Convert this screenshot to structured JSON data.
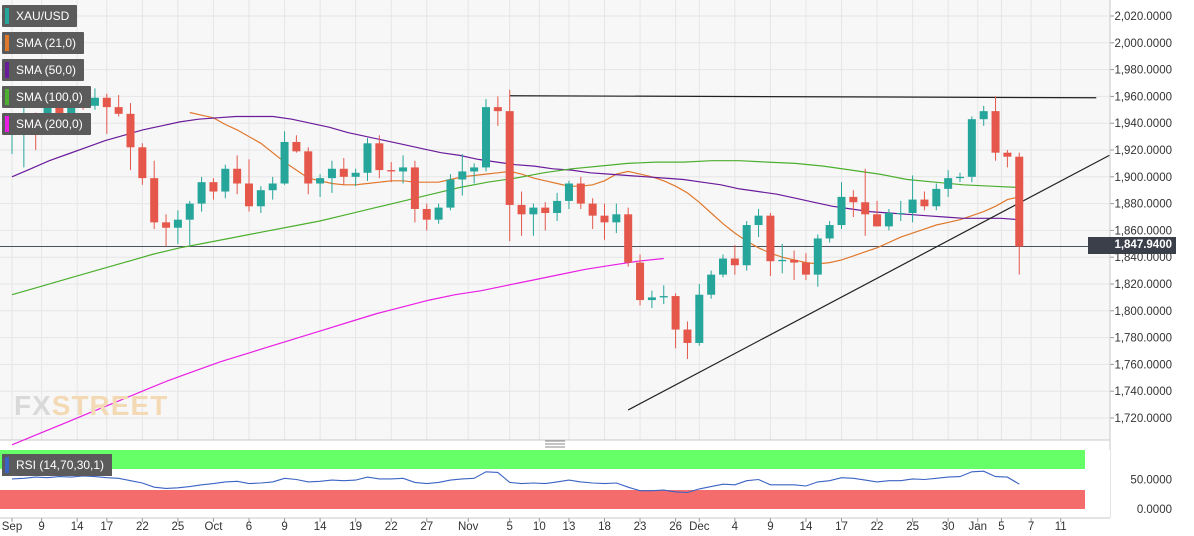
{
  "chart_data": {
    "type": "candlestick",
    "symbol": "XAU/USD",
    "last_price_label": "1,847.9400",
    "y_ticks": [
      "2,020.0000",
      "2,000.0000",
      "1,980.0000",
      "1,960.0000",
      "1,940.0000",
      "1,920.0000",
      "1,900.0000",
      "1,880.0000",
      "1,860.0000",
      "1,840.0000",
      "1,820.0000",
      "1,800.0000",
      "1,780.0000",
      "1,760.0000",
      "1,740.0000",
      "1,720.0000"
    ],
    "ylim": [
      1704,
      2026
    ],
    "x_tick_labels": [
      {
        "label": "Sep",
        "i": 0
      },
      {
        "label": "9",
        "i": 2.5
      },
      {
        "label": "14",
        "i": 5.5
      },
      {
        "label": "17",
        "i": 8
      },
      {
        "label": "22",
        "i": 11
      },
      {
        "label": "25",
        "i": 14
      },
      {
        "label": "Oct",
        "i": 17
      },
      {
        "label": "6",
        "i": 20
      },
      {
        "label": "9",
        "i": 23
      },
      {
        "label": "14",
        "i": 26
      },
      {
        "label": "19",
        "i": 29
      },
      {
        "label": "22",
        "i": 32
      },
      {
        "label": "27",
        "i": 35
      },
      {
        "label": "Nov",
        "i": 38.5
      },
      {
        "label": "5",
        "i": 42
      },
      {
        "label": "10",
        "i": 44.5
      },
      {
        "label": "13",
        "i": 47
      },
      {
        "label": "18",
        "i": 50
      },
      {
        "label": "23",
        "i": 53
      },
      {
        "label": "26",
        "i": 56
      },
      {
        "label": "Dec",
        "i": 58
      },
      {
        "label": "4",
        "i": 61
      },
      {
        "label": "9",
        "i": 64
      },
      {
        "label": "14",
        "i": 67
      },
      {
        "label": "17",
        "i": 70
      },
      {
        "label": "22",
        "i": 73
      },
      {
        "label": "25",
        "i": 76
      },
      {
        "label": "30",
        "i": 79
      },
      {
        "label": "Jan",
        "i": 81.5
      },
      {
        "label": "5",
        "i": 83.5
      },
      {
        "label": "7",
        "i": 86
      },
      {
        "label": "11",
        "i": 88.5
      }
    ],
    "candles": [
      {
        "o": 1932,
        "h": 1937,
        "l": 1917,
        "c": 1935
      },
      {
        "o": 1935,
        "h": 1955,
        "l": 1907,
        "c": 1943
      },
      {
        "o": 1943,
        "h": 1948,
        "l": 1920,
        "c": 1938
      },
      {
        "o": 1938,
        "h": 1958,
        "l": 1934,
        "c": 1955
      },
      {
        "o": 1955,
        "h": 1967,
        "l": 1940,
        "c": 1945
      },
      {
        "o": 1945,
        "h": 1961,
        "l": 1944,
        "c": 1958
      },
      {
        "o": 1958,
        "h": 1962,
        "l": 1950,
        "c": 1953
      },
      {
        "o": 1953,
        "h": 1966,
        "l": 1950,
        "c": 1959
      },
      {
        "o": 1959,
        "h": 1962,
        "l": 1932,
        "c": 1952
      },
      {
        "o": 1952,
        "h": 1961,
        "l": 1945,
        "c": 1947
      },
      {
        "o": 1947,
        "h": 1955,
        "l": 1905,
        "c": 1922
      },
      {
        "o": 1922,
        "h": 1925,
        "l": 1894,
        "c": 1899
      },
      {
        "o": 1899,
        "h": 1912,
        "l": 1861,
        "c": 1866
      },
      {
        "o": 1866,
        "h": 1872,
        "l": 1848,
        "c": 1862
      },
      {
        "o": 1862,
        "h": 1875,
        "l": 1850,
        "c": 1868
      },
      {
        "o": 1868,
        "h": 1882,
        "l": 1849,
        "c": 1880
      },
      {
        "o": 1880,
        "h": 1900,
        "l": 1874,
        "c": 1896
      },
      {
        "o": 1896,
        "h": 1899,
        "l": 1883,
        "c": 1889
      },
      {
        "o": 1889,
        "h": 1909,
        "l": 1884,
        "c": 1906
      },
      {
        "o": 1906,
        "h": 1916,
        "l": 1887,
        "c": 1895
      },
      {
        "o": 1895,
        "h": 1913,
        "l": 1874,
        "c": 1878
      },
      {
        "o": 1878,
        "h": 1893,
        "l": 1873,
        "c": 1890
      },
      {
        "o": 1890,
        "h": 1900,
        "l": 1883,
        "c": 1895
      },
      {
        "o": 1895,
        "h": 1934,
        "l": 1894,
        "c": 1926
      },
      {
        "o": 1926,
        "h": 1931,
        "l": 1918,
        "c": 1919
      },
      {
        "o": 1919,
        "h": 1922,
        "l": 1887,
        "c": 1895
      },
      {
        "o": 1895,
        "h": 1902,
        "l": 1885,
        "c": 1899
      },
      {
        "o": 1899,
        "h": 1912,
        "l": 1888,
        "c": 1906
      },
      {
        "o": 1906,
        "h": 1914,
        "l": 1894,
        "c": 1900
      },
      {
        "o": 1900,
        "h": 1906,
        "l": 1893,
        "c": 1903
      },
      {
        "o": 1903,
        "h": 1929,
        "l": 1897,
        "c": 1925
      },
      {
        "o": 1925,
        "h": 1931,
        "l": 1899,
        "c": 1905
      },
      {
        "o": 1905,
        "h": 1911,
        "l": 1896,
        "c": 1904
      },
      {
        "o": 1904,
        "h": 1916,
        "l": 1895,
        "c": 1907
      },
      {
        "o": 1907,
        "h": 1912,
        "l": 1866,
        "c": 1876
      },
      {
        "o": 1876,
        "h": 1880,
        "l": 1860,
        "c": 1868
      },
      {
        "o": 1868,
        "h": 1880,
        "l": 1865,
        "c": 1877
      },
      {
        "o": 1877,
        "h": 1902,
        "l": 1875,
        "c": 1898
      },
      {
        "o": 1898,
        "h": 1917,
        "l": 1886,
        "c": 1904
      },
      {
        "o": 1904,
        "h": 1910,
        "l": 1895,
        "c": 1907
      },
      {
        "o": 1907,
        "h": 1958,
        "l": 1904,
        "c": 1952
      },
      {
        "o": 1952,
        "h": 1960,
        "l": 1938,
        "c": 1949
      },
      {
        "o": 1949,
        "h": 1965,
        "l": 1852,
        "c": 1879
      },
      {
        "o": 1879,
        "h": 1889,
        "l": 1856,
        "c": 1872
      },
      {
        "o": 1872,
        "h": 1880,
        "l": 1856,
        "c": 1877
      },
      {
        "o": 1877,
        "h": 1881,
        "l": 1860,
        "c": 1873
      },
      {
        "o": 1873,
        "h": 1888,
        "l": 1867,
        "c": 1882
      },
      {
        "o": 1882,
        "h": 1897,
        "l": 1876,
        "c": 1895
      },
      {
        "o": 1895,
        "h": 1900,
        "l": 1876,
        "c": 1880
      },
      {
        "o": 1880,
        "h": 1884,
        "l": 1861,
        "c": 1871
      },
      {
        "o": 1871,
        "h": 1880,
        "l": 1853,
        "c": 1866
      },
      {
        "o": 1866,
        "h": 1880,
        "l": 1858,
        "c": 1872
      },
      {
        "o": 1872,
        "h": 1877,
        "l": 1833,
        "c": 1836
      },
      {
        "o": 1836,
        "h": 1842,
        "l": 1804,
        "c": 1808
      },
      {
        "o": 1808,
        "h": 1815,
        "l": 1802,
        "c": 1810
      },
      {
        "o": 1810,
        "h": 1819,
        "l": 1805,
        "c": 1811
      },
      {
        "o": 1811,
        "h": 1813,
        "l": 1772,
        "c": 1786
      },
      {
        "o": 1786,
        "h": 1792,
        "l": 1764,
        "c": 1776
      },
      {
        "o": 1776,
        "h": 1820,
        "l": 1774,
        "c": 1812
      },
      {
        "o": 1812,
        "h": 1830,
        "l": 1809,
        "c": 1827
      },
      {
        "o": 1827,
        "h": 1842,
        "l": 1825,
        "c": 1839
      },
      {
        "o": 1839,
        "h": 1849,
        "l": 1827,
        "c": 1834
      },
      {
        "o": 1834,
        "h": 1867,
        "l": 1830,
        "c": 1864
      },
      {
        "o": 1864,
        "h": 1876,
        "l": 1855,
        "c": 1871
      },
      {
        "o": 1871,
        "h": 1873,
        "l": 1826,
        "c": 1837
      },
      {
        "o": 1837,
        "h": 1850,
        "l": 1828,
        "c": 1838
      },
      {
        "o": 1838,
        "h": 1845,
        "l": 1823,
        "c": 1836
      },
      {
        "o": 1836,
        "h": 1843,
        "l": 1823,
        "c": 1827
      },
      {
        "o": 1827,
        "h": 1857,
        "l": 1818,
        "c": 1854
      },
      {
        "o": 1854,
        "h": 1867,
        "l": 1851,
        "c": 1864
      },
      {
        "o": 1864,
        "h": 1896,
        "l": 1861,
        "c": 1885
      },
      {
        "o": 1885,
        "h": 1890,
        "l": 1870,
        "c": 1881
      },
      {
        "o": 1881,
        "h": 1906,
        "l": 1856,
        "c": 1872
      },
      {
        "o": 1872,
        "h": 1882,
        "l": 1863,
        "c": 1863
      },
      {
        "o": 1863,
        "h": 1876,
        "l": 1860,
        "c": 1873
      },
      {
        "o": 1873,
        "h": 1882,
        "l": 1867,
        "c": 1873
      },
      {
        "o": 1873,
        "h": 1901,
        "l": 1866,
        "c": 1883
      },
      {
        "o": 1883,
        "h": 1889,
        "l": 1875,
        "c": 1878
      },
      {
        "o": 1878,
        "h": 1895,
        "l": 1875,
        "c": 1891
      },
      {
        "o": 1891,
        "h": 1905,
        "l": 1885,
        "c": 1899
      },
      {
        "o": 1899,
        "h": 1903,
        "l": 1896,
        "c": 1900
      },
      {
        "o": 1900,
        "h": 1945,
        "l": 1896,
        "c": 1943
      },
      {
        "o": 1943,
        "h": 1953,
        "l": 1938,
        "c": 1949
      },
      {
        "o": 1949,
        "h": 1960,
        "l": 1912,
        "c": 1918
      },
      {
        "o": 1918,
        "h": 1920,
        "l": 1907,
        "c": 1915
      },
      {
        "o": 1915,
        "h": 1918,
        "l": 1827,
        "c": 1848
      }
    ],
    "series": [
      {
        "name": "SMA (21,0)",
        "color": "#e0782c",
        "values": [
          1948,
          1946,
          1944,
          1939,
          1935,
          1930,
          1925,
          1918,
          1911,
          1905,
          1899,
          1897,
          1895,
          1894,
          1894,
          1895,
          1896,
          1897,
          1897,
          1896,
          1896,
          1896,
          1898,
          1900,
          1901,
          1902,
          1903,
          1904,
          1902,
          1899,
          1897,
          1895,
          1893,
          1893,
          1894,
          1897,
          1902,
          1904,
          1902,
          1900,
          1897,
          1893,
          1888,
          1881,
          1873,
          1865,
          1858,
          1852,
          1847,
          1843,
          1840,
          1838,
          1836,
          1835,
          1836,
          1838,
          1841,
          1844,
          1847,
          1851,
          1855,
          1858,
          1861,
          1864,
          1866,
          1868,
          1871,
          1874,
          1878,
          1883,
          1885
        ]
      },
      {
        "name": "SMA (50,0)",
        "color": "#6a1b9a",
        "values": [
          1900,
          1906,
          1912,
          1917,
          1922,
          1927,
          1931,
          1935,
          1938,
          1941,
          1943,
          1944,
          1945,
          1945,
          1945,
          1943,
          1940,
          1937,
          1933,
          1930,
          1927,
          1924,
          1921,
          1918,
          1916,
          1913,
          1911,
          1909,
          1908,
          1906,
          1905,
          1903,
          1902,
          1901,
          1900,
          1899,
          1898,
          1896,
          1894,
          1891,
          1889,
          1887,
          1884,
          1881,
          1878,
          1876,
          1874,
          1873,
          1872,
          1871,
          1870,
          1869,
          1869,
          1869,
          1868
        ]
      },
      {
        "name": "SMA (100,0)",
        "color": "#4caf2e",
        "values": [
          1812,
          1818,
          1824,
          1830,
          1836,
          1842,
          1847,
          1851,
          1855,
          1859,
          1863,
          1867,
          1872,
          1877,
          1882,
          1887,
          1892,
          1896,
          1899,
          1903,
          1906,
          1908,
          1910,
          1911,
          1911,
          1912,
          1912,
          1911,
          1910,
          1908,
          1905,
          1902,
          1898,
          1896,
          1894,
          1893,
          1892
        ]
      },
      {
        "name": "SMA (200,0)",
        "color": "#e91ee3",
        "values": [
          1700,
          1708,
          1716,
          1724,
          1732,
          1740,
          1748,
          1755,
          1762,
          1768,
          1774,
          1780,
          1786,
          1792,
          1798,
          1803,
          1808,
          1812,
          1815,
          1819,
          1823,
          1827,
          1831,
          1834,
          1837,
          1839
        ]
      }
    ],
    "rsi": {
      "label": "RSI (14,70,30,1)",
      "levels": [
        70,
        30
      ],
      "y_ticks": [
        "50.0000",
        "0.0000"
      ],
      "values": [
        51,
        52,
        54,
        53,
        55,
        54,
        56,
        55,
        53,
        52,
        48,
        44,
        37,
        35,
        36,
        38,
        41,
        43,
        46,
        47,
        43,
        44,
        46,
        52,
        50,
        46,
        47,
        49,
        48,
        49,
        54,
        51,
        51,
        52,
        45,
        43,
        45,
        49,
        51,
        52,
        63,
        62,
        45,
        43,
        44,
        43,
        46,
        49,
        46,
        44,
        43,
        44,
        37,
        31,
        31,
        32,
        29,
        28,
        34,
        38,
        42,
        41,
        48,
        50,
        41,
        41,
        41,
        39,
        46,
        48,
        53,
        52,
        49,
        46,
        48,
        48,
        51,
        50,
        52,
        54,
        55,
        63,
        64,
        55,
        54,
        42
      ]
    }
  },
  "legend": [
    {
      "label": "XAU/USD",
      "color": "#26a69a"
    },
    {
      "label": "SMA (21,0)",
      "color": "#e0782c"
    },
    {
      "label": "SMA (50,0)",
      "color": "#6a1b9a"
    },
    {
      "label": "SMA (100,0)",
      "color": "#4caf2e"
    },
    {
      "label": "SMA (200,0)",
      "color": "#e91ee3"
    }
  ],
  "watermark": {
    "part1": "FX",
    "part2": "STREET"
  },
  "colors": {
    "bull": "#26a69a",
    "bear": "#e4574a",
    "grid": "#e6e6e6"
  }
}
